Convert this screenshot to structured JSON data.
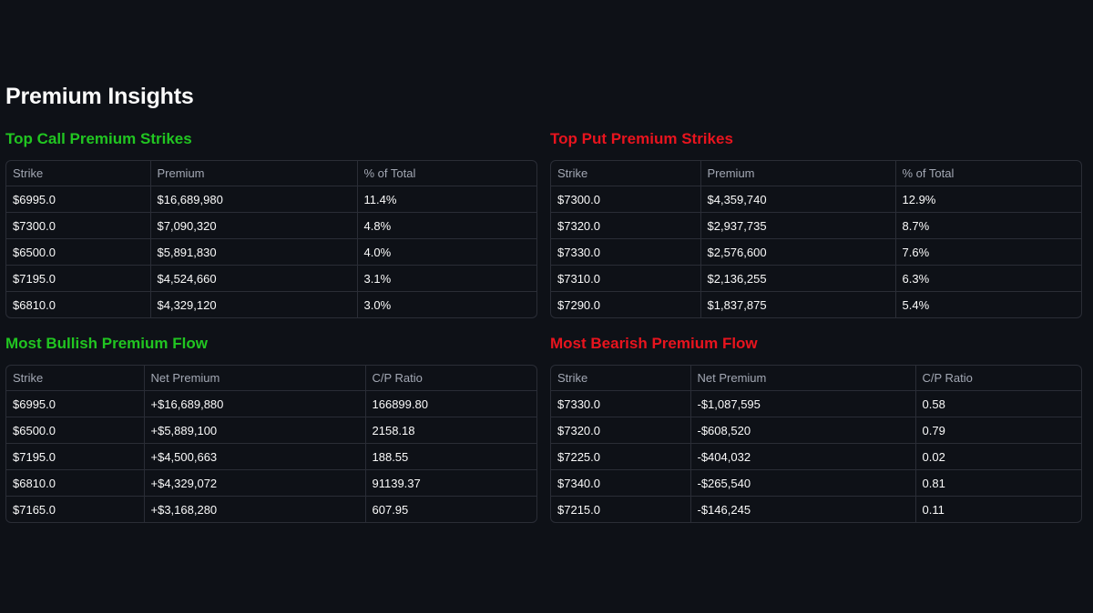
{
  "page_title": "Premium Insights",
  "colors": {
    "background": "#0e1117",
    "bullish": "#21c521",
    "bearish": "#e8141e",
    "border": "#2a2d36"
  },
  "top_call": {
    "title": "Top Call Premium Strikes",
    "columns": [
      "Strike",
      "Premium",
      "% of Total"
    ],
    "rows": [
      [
        "$6995.0",
        "$16,689,980",
        "11.4%"
      ],
      [
        "$7300.0",
        "$7,090,320",
        "4.8%"
      ],
      [
        "$6500.0",
        "$5,891,830",
        "4.0%"
      ],
      [
        "$7195.0",
        "$4,524,660",
        "3.1%"
      ],
      [
        "$6810.0",
        "$4,329,120",
        "3.0%"
      ]
    ]
  },
  "top_put": {
    "title": "Top Put Premium Strikes",
    "columns": [
      "Strike",
      "Premium",
      "% of Total"
    ],
    "rows": [
      [
        "$7300.0",
        "$4,359,740",
        "12.9%"
      ],
      [
        "$7320.0",
        "$2,937,735",
        "8.7%"
      ],
      [
        "$7330.0",
        "$2,576,600",
        "7.6%"
      ],
      [
        "$7310.0",
        "$2,136,255",
        "6.3%"
      ],
      [
        "$7290.0",
        "$1,837,875",
        "5.4%"
      ]
    ]
  },
  "bullish": {
    "title": "Most Bullish Premium Flow",
    "columns": [
      "Strike",
      "Net Premium",
      "C/P Ratio"
    ],
    "rows": [
      [
        "$6995.0",
        "+$16,689,880",
        "166899.80"
      ],
      [
        "$6500.0",
        "+$5,889,100",
        "2158.18"
      ],
      [
        "$7195.0",
        "+$4,500,663",
        "188.55"
      ],
      [
        "$6810.0",
        "+$4,329,072",
        "91139.37"
      ],
      [
        "$7165.0",
        "+$3,168,280",
        "607.95"
      ]
    ]
  },
  "bearish": {
    "title": "Most Bearish Premium Flow",
    "columns": [
      "Strike",
      "Net Premium",
      "C/P Ratio"
    ],
    "rows": [
      [
        "$7330.0",
        "-$1,087,595",
        "0.58"
      ],
      [
        "$7320.0",
        "-$608,520",
        "0.79"
      ],
      [
        "$7225.0",
        "-$404,032",
        "0.02"
      ],
      [
        "$7340.0",
        "-$265,540",
        "0.81"
      ],
      [
        "$7215.0",
        "-$146,245",
        "0.11"
      ]
    ]
  }
}
